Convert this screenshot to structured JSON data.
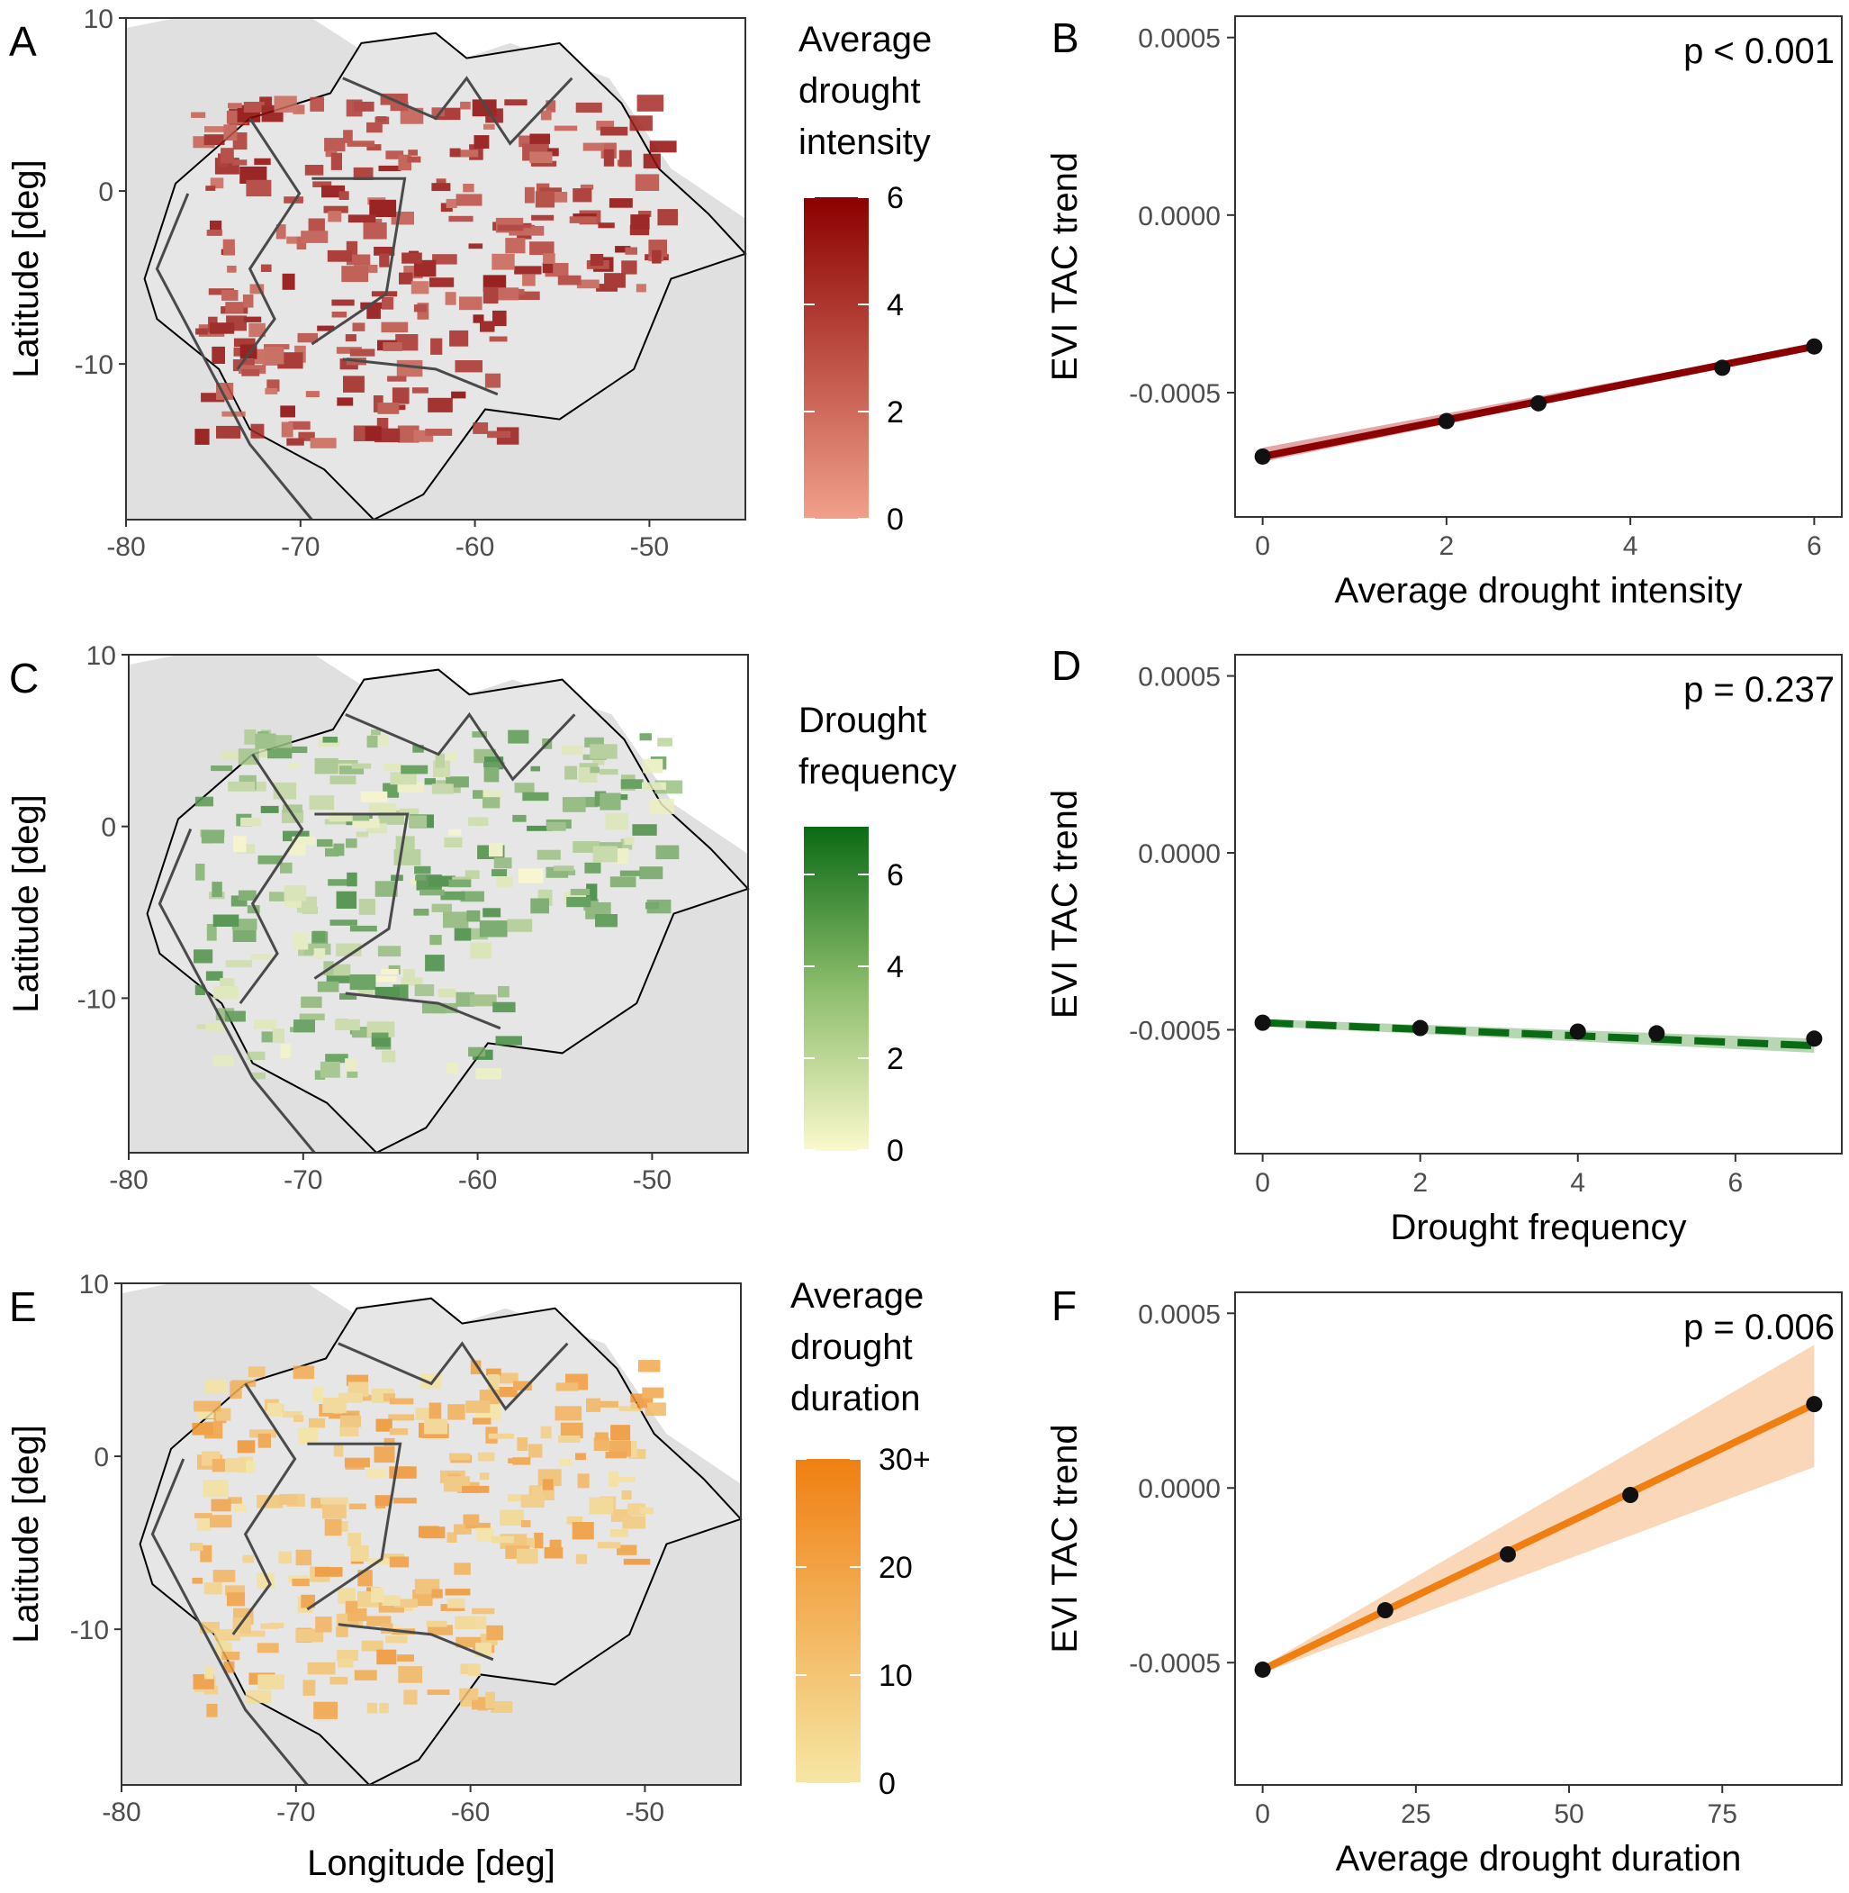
{
  "colors": {
    "land": "#e0e0e0",
    "border": "#4a4a4a",
    "intensity": [
      "#f1a08b",
      "#8b0000"
    ],
    "frequency": [
      "#fbf9cd",
      "#0b6a14"
    ],
    "duration": [
      "#f6e7a5",
      "#f07f12"
    ],
    "intensity_line": "#8b0000",
    "frequency_line": "#0b6a14",
    "duration_line": "#f07f12"
  },
  "maps": [
    {
      "panel": "A",
      "ylabel": "Latitude [deg]",
      "xlabel": "",
      "x_ticks": [
        "-80",
        "-70",
        "-60",
        "-50"
      ],
      "y_ticks": [
        "10",
        "0",
        "-10"
      ],
      "legend_title": [
        "Average",
        "drought",
        "intensity"
      ],
      "legend_ticks": [
        "6",
        "4",
        "2",
        "0"
      ],
      "legend_values": [
        6,
        4,
        2,
        0
      ],
      "legend_range": [
        0,
        6
      ],
      "colormap": "intensity"
    },
    {
      "panel": "C",
      "ylabel": "Latitude [deg]",
      "xlabel": "",
      "x_ticks": [
        "-80",
        "-70",
        "-60",
        "-50"
      ],
      "y_ticks": [
        "10",
        "0",
        "-10"
      ],
      "legend_title": [
        "Drought",
        "frequency"
      ],
      "legend_ticks": [
        "6",
        "4",
        "2",
        "0"
      ],
      "legend_values": [
        6,
        4,
        2,
        0
      ],
      "legend_range": [
        0,
        7
      ],
      "colormap": "frequency"
    },
    {
      "panel": "E",
      "ylabel": "Latitude [deg]",
      "xlabel": "Longitude [deg]",
      "x_ticks": [
        "-80",
        "-70",
        "-60",
        "-50"
      ],
      "y_ticks": [
        "10",
        "0",
        "-10"
      ],
      "legend_title": [
        "Average",
        "drought",
        "duration"
      ],
      "legend_ticks": [
        "30+",
        "20",
        "10",
        "0"
      ],
      "legend_values": [
        30,
        20,
        10,
        0
      ],
      "legend_range": [
        0,
        30
      ],
      "colormap": "duration"
    }
  ],
  "chart_data": [
    {
      "panel": "B",
      "type": "line",
      "xlabel": "Average drought intensity",
      "ylabel": "EVI TAC trend",
      "annotation": "p < 0.001",
      "x_ticks": [
        "0",
        "2",
        "4",
        "6"
      ],
      "y_ticks": [
        "0.0005",
        "0.0000",
        "-0.0005"
      ],
      "xlim": [
        -0.3,
        6.3
      ],
      "ylim": [
        -0.00085,
        0.00056
      ],
      "points": {
        "x": [
          0,
          2,
          3,
          5,
          6
        ],
        "y": [
          -0.00068,
          -0.00058,
          -0.00053,
          -0.00043,
          -0.00037
        ]
      },
      "fit": {
        "x": [
          0,
          6
        ],
        "y": [
          -0.00068,
          -0.00037
        ],
        "ci_low": [
          -0.000695,
          -0.000375
        ],
        "ci_high": [
          -0.000655,
          -0.000365
        ]
      },
      "line_style": "solid",
      "color": "#8b0000",
      "band_color": "#d98a8a"
    },
    {
      "panel": "D",
      "type": "line",
      "xlabel": "Drought frequency",
      "ylabel": "EVI TAC trend",
      "annotation": "p = 0.237",
      "x_ticks": [
        "0",
        "2",
        "4",
        "6"
      ],
      "y_ticks": [
        "0.0005",
        "0.0000",
        "-0.0005"
      ],
      "xlim": [
        -0.35,
        7.35
      ],
      "ylim": [
        -0.00085,
        0.00056
      ],
      "points": {
        "x": [
          0,
          2,
          4,
          5,
          7
        ],
        "y": [
          -0.00048,
          -0.000495,
          -0.000505,
          -0.00051,
          -0.000525
        ]
      },
      "fit": {
        "x": [
          0,
          7
        ],
        "y": [
          -0.00048,
          -0.000545
        ],
        "ci_low": [
          -0.00049,
          -0.000565
        ],
        "ci_high": [
          -0.00047,
          -0.000525
        ]
      },
      "line_style": "dashed",
      "color": "#0b6a14",
      "band_color": "#9fc99a"
    },
    {
      "panel": "F",
      "type": "line",
      "xlabel": "Average drought duration",
      "ylabel": "EVI TAC trend",
      "annotation": "p = 0.006",
      "x_ticks": [
        "0",
        "25",
        "50",
        "75"
      ],
      "y_ticks": [
        "0.0005",
        "0.0000",
        "-0.0005"
      ],
      "xlim": [
        -4.5,
        94.5
      ],
      "ylim": [
        -0.00085,
        0.00056
      ],
      "points": {
        "x": [
          0,
          20,
          40,
          60,
          90
        ],
        "y": [
          -0.00052,
          -0.00035,
          -0.00019,
          -2e-05,
          0.00024
        ]
      },
      "fit": {
        "x": [
          0,
          90
        ],
        "y": [
          -0.00052,
          0.00024
        ],
        "ci_low": [
          -0.00053,
          6e-05
        ],
        "ci_high": [
          -0.00051,
          0.00041
        ]
      },
      "line_style": "solid",
      "color": "#f07f12",
      "band_color": "#f8c9a0"
    }
  ]
}
